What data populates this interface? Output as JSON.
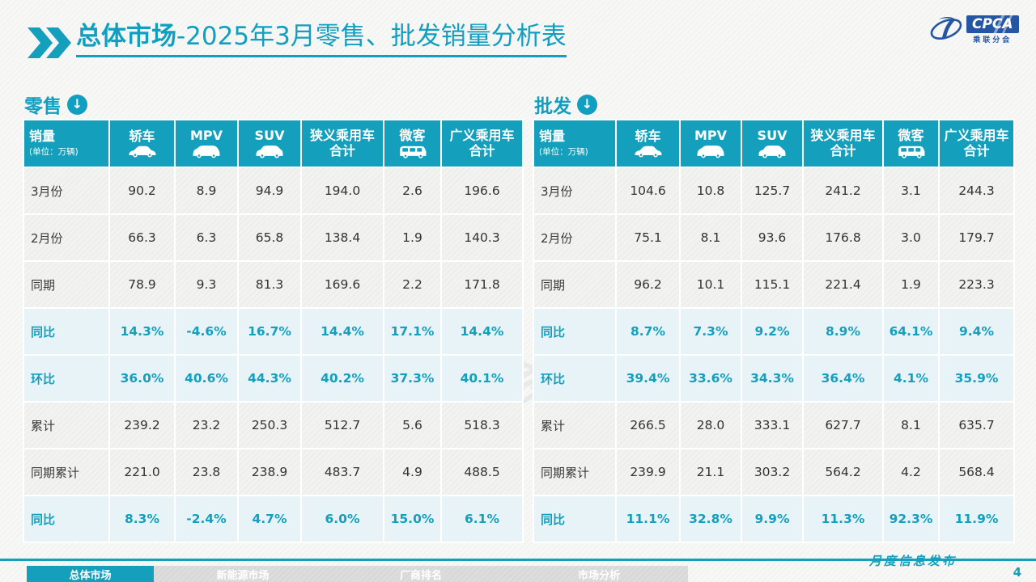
{
  "header": {
    "title_bold": "总体市场",
    "title_rest": "-2025年3月零售、批发销量分析表",
    "logo": {
      "badge": "CPCA",
      "subtitle": "乘联分会"
    }
  },
  "columns": [
    {
      "label": "销量",
      "sub": "(单位：万辆)",
      "icon": null
    },
    {
      "label": "轿车",
      "sub": null,
      "icon": "sedan-icon"
    },
    {
      "label": "MPV",
      "sub": null,
      "icon": "mpv-icon"
    },
    {
      "label": "SUV",
      "sub": null,
      "icon": "suv-icon"
    },
    {
      "label": "狭义乘用车\n合计",
      "sub": null,
      "icon": null
    },
    {
      "label": "微客",
      "sub": null,
      "icon": "microvan-icon"
    },
    {
      "label": "广义乘用车\n合计",
      "sub": null,
      "icon": null
    }
  ],
  "tables": [
    {
      "section_label": "零售",
      "rows": [
        {
          "label": "3月份",
          "highlight": false,
          "values": [
            "90.2",
            "8.9",
            "94.9",
            "194.0",
            "2.6",
            "196.6"
          ]
        },
        {
          "label": "2月份",
          "highlight": false,
          "values": [
            "66.3",
            "6.3",
            "65.8",
            "138.4",
            "1.9",
            "140.3"
          ]
        },
        {
          "label": "同期",
          "highlight": false,
          "values": [
            "78.9",
            "9.3",
            "81.3",
            "169.6",
            "2.2",
            "171.8"
          ]
        },
        {
          "label": "同比",
          "highlight": true,
          "values": [
            "14.3%",
            "-4.6%",
            "16.7%",
            "14.4%",
            "17.1%",
            "14.4%"
          ]
        },
        {
          "label": "环比",
          "highlight": true,
          "values": [
            "36.0%",
            "40.6%",
            "44.3%",
            "40.2%",
            "37.3%",
            "40.1%"
          ]
        },
        {
          "label": "累计",
          "highlight": false,
          "values": [
            "239.2",
            "23.2",
            "250.3",
            "512.7",
            "5.6",
            "518.3"
          ]
        },
        {
          "label": "同期累计",
          "highlight": false,
          "values": [
            "221.0",
            "23.8",
            "238.9",
            "483.7",
            "4.9",
            "488.5"
          ]
        },
        {
          "label": "同比",
          "highlight": true,
          "values": [
            "8.3%",
            "-2.4%",
            "4.7%",
            "6.0%",
            "15.0%",
            "6.1%"
          ]
        }
      ]
    },
    {
      "section_label": "批发",
      "rows": [
        {
          "label": "3月份",
          "highlight": false,
          "values": [
            "104.6",
            "10.8",
            "125.7",
            "241.2",
            "3.1",
            "244.3"
          ]
        },
        {
          "label": "2月份",
          "highlight": false,
          "values": [
            "75.1",
            "8.1",
            "93.6",
            "176.8",
            "3.0",
            "179.7"
          ]
        },
        {
          "label": "同期",
          "highlight": false,
          "values": [
            "96.2",
            "10.1",
            "115.1",
            "221.4",
            "1.9",
            "223.3"
          ]
        },
        {
          "label": "同比",
          "highlight": true,
          "values": [
            "8.7%",
            "7.3%",
            "9.2%",
            "8.9%",
            "64.1%",
            "9.4%"
          ]
        },
        {
          "label": "环比",
          "highlight": true,
          "values": [
            "39.4%",
            "33.6%",
            "34.3%",
            "36.4%",
            "4.1%",
            "35.9%"
          ]
        },
        {
          "label": "累计",
          "highlight": false,
          "values": [
            "266.5",
            "28.0",
            "333.1",
            "627.7",
            "8.1",
            "635.7"
          ]
        },
        {
          "label": "同期累计",
          "highlight": false,
          "values": [
            "239.9",
            "21.1",
            "303.2",
            "564.2",
            "4.2",
            "568.4"
          ]
        },
        {
          "label": "同比",
          "highlight": true,
          "values": [
            "11.1%",
            "32.8%",
            "9.9%",
            "11.3%",
            "92.3%",
            "11.9%"
          ]
        }
      ]
    }
  ],
  "chart_data": [
    {
      "type": "table",
      "title": "零售",
      "unit": "万辆",
      "columns": [
        "轿车",
        "MPV",
        "SUV",
        "狭义乘用车合计",
        "微客",
        "广义乘用车合计"
      ],
      "row_labels": [
        "3月份",
        "2月份",
        "同期",
        "同比",
        "环比",
        "累计",
        "同期累计",
        "同比"
      ],
      "rows": [
        [
          90.2,
          8.9,
          94.9,
          194.0,
          2.6,
          196.6
        ],
        [
          66.3,
          6.3,
          65.8,
          138.4,
          1.9,
          140.3
        ],
        [
          78.9,
          9.3,
          81.3,
          169.6,
          2.2,
          171.8
        ],
        [
          "14.3%",
          "-4.6%",
          "16.7%",
          "14.4%",
          "17.1%",
          "14.4%"
        ],
        [
          "36.0%",
          "40.6%",
          "44.3%",
          "40.2%",
          "37.3%",
          "40.1%"
        ],
        [
          239.2,
          23.2,
          250.3,
          512.7,
          5.6,
          518.3
        ],
        [
          221.0,
          23.8,
          238.9,
          483.7,
          4.9,
          488.5
        ],
        [
          "8.3%",
          "-2.4%",
          "4.7%",
          "6.0%",
          "15.0%",
          "6.1%"
        ]
      ]
    },
    {
      "type": "table",
      "title": "批发",
      "unit": "万辆",
      "columns": [
        "轿车",
        "MPV",
        "SUV",
        "狭义乘用车合计",
        "微客",
        "广义乘用车合计"
      ],
      "row_labels": [
        "3月份",
        "2月份",
        "同期",
        "同比",
        "环比",
        "累计",
        "同期累计",
        "同比"
      ],
      "rows": [
        [
          104.6,
          10.8,
          125.7,
          241.2,
          3.1,
          244.3
        ],
        [
          75.1,
          8.1,
          93.6,
          176.8,
          3.0,
          179.7
        ],
        [
          96.2,
          10.1,
          115.1,
          221.4,
          1.9,
          223.3
        ],
        [
          "8.7%",
          "7.3%",
          "9.2%",
          "8.9%",
          "64.1%",
          "9.4%"
        ],
        [
          "39.4%",
          "33.6%",
          "34.3%",
          "36.4%",
          "4.1%",
          "35.9%"
        ],
        [
          266.5,
          28.0,
          333.1,
          627.7,
          8.1,
          635.7
        ],
        [
          239.9,
          21.1,
          303.2,
          564.2,
          4.2,
          568.4
        ],
        [
          "11.1%",
          "32.8%",
          "9.9%",
          "11.3%",
          "92.3%",
          "11.9%"
        ]
      ]
    }
  ],
  "watermark": {
    "text": "乘联分会"
  },
  "footer": {
    "tabs": [
      {
        "label": "总体市场",
        "active": true
      },
      {
        "label": "新能源市场",
        "active": false
      },
      {
        "label": "厂商排名",
        "active": false
      },
      {
        "label": "市场分析",
        "active": false
      }
    ],
    "note": "月度信息发布",
    "page_number": "4"
  },
  "colors": {
    "accent_teal": "#14a0bd",
    "highlight_row_bg": "#e8f3f8",
    "logo_blue": "#2456a4",
    "inactive_tab_gray": "#d9d9d9"
  }
}
